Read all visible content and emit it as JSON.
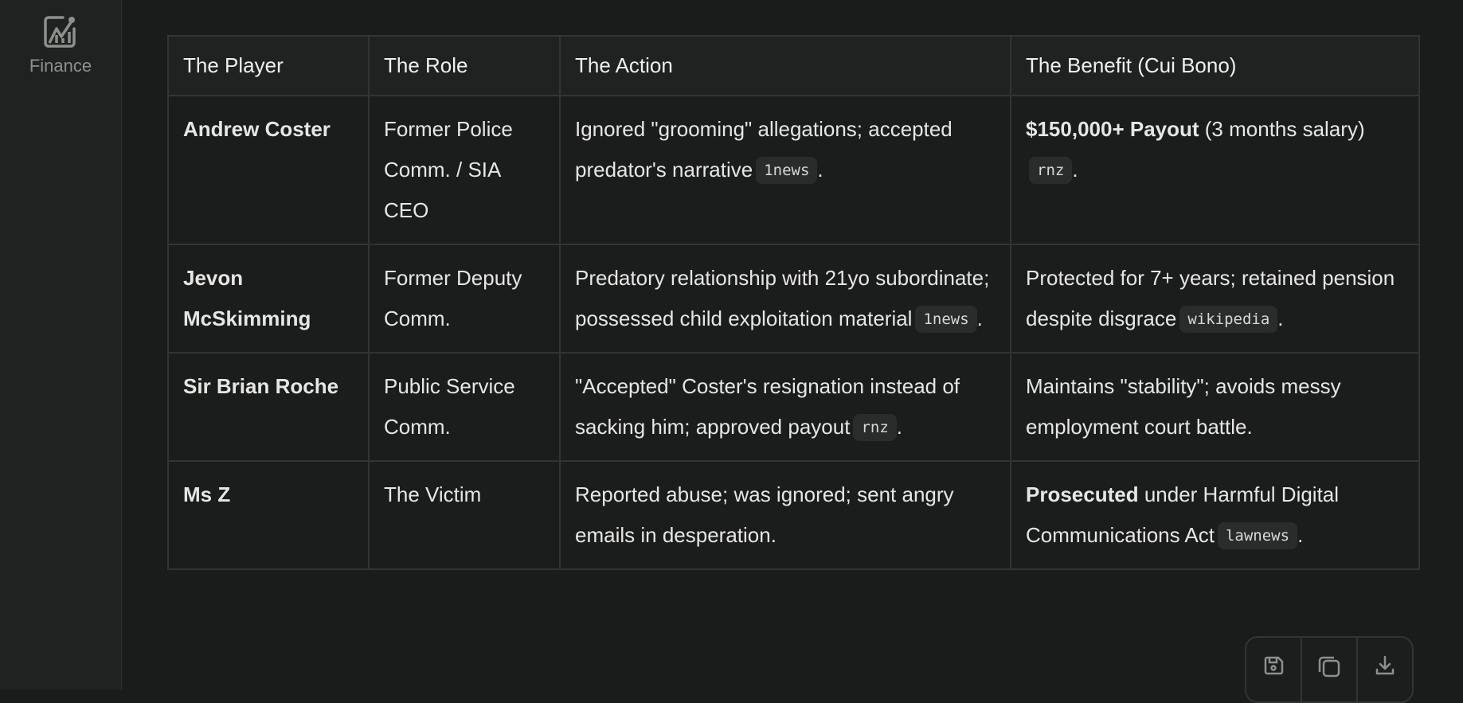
{
  "sidebar": {
    "items": [
      {
        "label": "Finance",
        "icon": "chart-line-icon"
      }
    ]
  },
  "table": {
    "headers": [
      "The Player",
      "The Role",
      "The Action",
      "The Benefit (Cui Bono)"
    ],
    "rows": [
      {
        "player": "Andrew Coster",
        "role": "Former Police Comm. / SIA CEO",
        "action": {
          "text": "Ignored \"grooming\" allegations; accepted predator's narrative",
          "source": "1news"
        },
        "benefit": {
          "bold": "$150,000+ Payout",
          "text": " (3 months salary)",
          "source": "rnz"
        }
      },
      {
        "player": "Jevon McSkimming",
        "role": "Former Deputy Comm.",
        "action": {
          "text": "Predatory relationship with 21yo subordinate; possessed child exploitation material",
          "source": "1news"
        },
        "benefit": {
          "bold": "",
          "text": "Protected for 7+ years; retained pension despite disgrace",
          "source": "wikipedia"
        }
      },
      {
        "player": "Sir Brian Roche",
        "role": "Public Service Comm.",
        "action": {
          "text": "\"Accepted\" Coster's resignation instead of sacking him; approved payout",
          "source": "rnz"
        },
        "benefit": {
          "bold": "",
          "text": "Maintains \"stability\"; avoids messy employment court battle.",
          "source": ""
        }
      },
      {
        "player": "Ms Z",
        "role": "The Victim",
        "action": {
          "text": "Reported abuse; was ignored; sent angry emails in desperation.",
          "source": ""
        },
        "benefit": {
          "bold": "Prosecuted",
          "text": " under Harmful Digital Communications Act",
          "source": "lawnews"
        }
      }
    ]
  },
  "toolbar": {
    "buttons": [
      "save-icon",
      "copy-icon",
      "download-icon"
    ]
  }
}
